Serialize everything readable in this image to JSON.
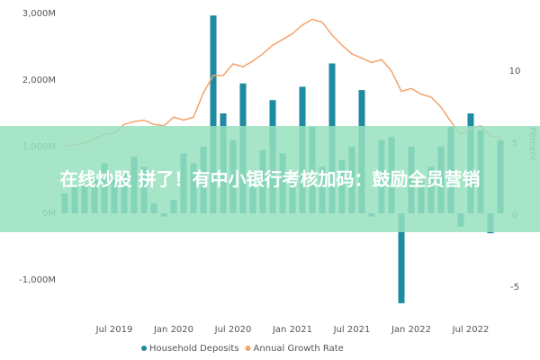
{
  "chart_data": {
    "type": "bar-line",
    "categories": [
      null,
      null,
      null,
      null,
      null,
      "Jul 2019",
      null,
      null,
      null,
      null,
      null,
      "Jan 2020",
      null,
      null,
      null,
      null,
      null,
      "Jul 2020",
      null,
      null,
      null,
      null,
      null,
      "Jan 2021",
      null,
      null,
      null,
      null,
      null,
      "Jul 2021",
      null,
      null,
      null,
      null,
      null,
      "Jan 2022",
      null,
      null,
      null,
      null,
      null,
      "Jul 2022",
      null,
      null,
      null
    ],
    "series": [
      {
        "name": "Household Deposits",
        "color": "#1f8ba0",
        "type": "bar",
        "values": [
          300,
          400,
          450,
          550,
          750,
          500,
          600,
          850,
          700,
          150,
          -50,
          200,
          900,
          750,
          1000,
          2970,
          1500,
          1100,
          1950,
          600,
          950,
          1700,
          900,
          500,
          1900,
          1300,
          700,
          2250,
          800,
          1000,
          1850,
          -50,
          1100,
          1150,
          -1350,
          1000,
          500,
          700,
          1000,
          1300,
          -200,
          1500,
          1250,
          -300,
          1100
        ]
      },
      {
        "name": "Annual Growth Rate",
        "color": "#f5a26b",
        "type": "line",
        "axis": "y2",
        "values": [
          4.8,
          4.9,
          5.0,
          5.3,
          5.6,
          5.7,
          6.3,
          6.5,
          6.6,
          6.3,
          6.2,
          6.8,
          6.6,
          6.8,
          8.5,
          9.7,
          9.7,
          10.5,
          10.3,
          10.7,
          11.2,
          11.8,
          12.2,
          12.6,
          13.2,
          13.6,
          13.4,
          12.5,
          11.8,
          11.2,
          10.9,
          10.6,
          10.8,
          10.0,
          8.6,
          8.8,
          8.4,
          8.2,
          7.5,
          6.5,
          5.6,
          6.0,
          6.2,
          5.5,
          5.4
        ]
      }
    ],
    "ylim": [
      -1500,
      3000
    ],
    "yticks": [
      {
        "value": -1000,
        "label": "-1,000M"
      },
      {
        "value": 0,
        "label": "0M"
      },
      {
        "value": 1000,
        "label": "1,000M"
      },
      {
        "value": 2000,
        "label": "2,000M"
      },
      {
        "value": 3000,
        "label": "3,000M"
      }
    ],
    "y2lim": [
      -6.8,
      14
    ],
    "y2ticks": [
      -5,
      0,
      5,
      10
    ],
    "y2label": "Percent",
    "grid": false
  },
  "overlay_text": "在线炒股 拼了！有中小银行考核加码：鼓励全员营销"
}
